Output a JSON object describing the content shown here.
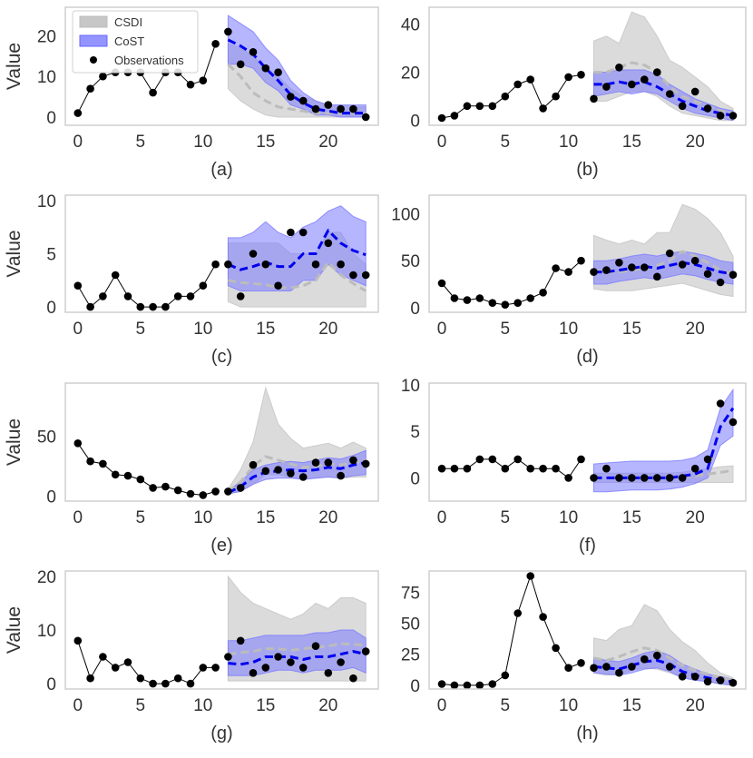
{
  "chart_data": {
    "type": "line",
    "legend": {
      "placement": "top-left of panel (a)",
      "entries": [
        {
          "name": "CSDI",
          "kind": "band",
          "color": "#bdbdbd"
        },
        {
          "name": "CoST",
          "kind": "band",
          "color": "#6666ff"
        },
        {
          "name": "Observations",
          "kind": "marker",
          "color": "#000000"
        }
      ]
    },
    "colors": {
      "csdi_band": "#c8c8c8",
      "csdi_median": "#bcbcbc",
      "cost_band": "#7a7aff",
      "cost_median": "#0000ee",
      "observations": "#000000",
      "frame": "#cfcfcf"
    },
    "xlim": [
      -1,
      24
    ],
    "xticks": [
      0,
      5,
      10,
      15,
      20
    ],
    "forecast_x": [
      12,
      13,
      14,
      15,
      16,
      17,
      18,
      19,
      20,
      21,
      22,
      23
    ],
    "panels": [
      {
        "label": "(a)",
        "ylabel": "Value",
        "ylim": [
          -2,
          27
        ],
        "yticks": [
          0,
          10,
          20
        ],
        "history": [
          1,
          7,
          10,
          11,
          11,
          11,
          6,
          11,
          11,
          8,
          9,
          18
        ],
        "observations": [
          21,
          13,
          16,
          12,
          11,
          5,
          4,
          2,
          3,
          2,
          2,
          0
        ],
        "cost_median": [
          19,
          17.5,
          15.5,
          12,
          9,
          5.5,
          3.5,
          2,
          1.5,
          1,
          1,
          1
        ],
        "cost_lower": [
          13,
          13,
          12,
          8.5,
          6.5,
          3,
          2,
          0.5,
          0.5,
          0,
          0,
          0
        ],
        "cost_upper": [
          25,
          23,
          21,
          17,
          14,
          9,
          6,
          4,
          3,
          3,
          3,
          3
        ],
        "csdi_median": [
          13,
          10,
          6,
          4,
          2.5,
          2,
          1.5,
          1,
          1,
          1,
          1,
          1
        ],
        "csdi_lower": [
          7,
          4,
          2,
          0.5,
          0,
          0,
          0,
          0,
          0,
          0,
          0,
          0
        ],
        "csdi_upper": [
          18,
          17,
          15,
          12,
          10,
          7,
          5,
          4,
          3,
          3,
          2.5,
          2.5
        ]
      },
      {
        "label": "(b)",
        "ylabel": "",
        "ylim": [
          -2,
          47
        ],
        "yticks": [
          0,
          20,
          40
        ],
        "history": [
          1,
          2,
          6,
          6,
          6,
          10,
          15,
          17,
          5,
          10,
          18,
          19
        ],
        "observations": [
          9,
          14,
          22,
          15,
          17,
          20,
          11,
          6,
          12,
          5,
          2,
          2
        ],
        "cost_median": [
          15,
          15,
          16,
          15,
          16,
          14,
          11,
          8,
          6,
          4,
          3,
          2
        ],
        "cost_lower": [
          10,
          11,
          12,
          11,
          12,
          11,
          8,
          5,
          3,
          2,
          1,
          0
        ],
        "cost_upper": [
          20,
          20,
          21,
          21,
          21,
          19,
          15,
          12,
          9,
          7,
          5,
          4
        ],
        "csdi_median": [
          20,
          20,
          22,
          24,
          23,
          20,
          14,
          10,
          8,
          6,
          4,
          3
        ],
        "csdi_lower": [
          8,
          8,
          10,
          12,
          12,
          10,
          6,
          3,
          2,
          1,
          0,
          0
        ],
        "csdi_upper": [
          33,
          35,
          32,
          45,
          43,
          35,
          25,
          22,
          18,
          14,
          8,
          5
        ]
      },
      {
        "label": "(c)",
        "ylabel": "Value",
        "ylim": [
          -0.5,
          10.5
        ],
        "yticks": [
          0,
          5,
          10
        ],
        "history": [
          2,
          0,
          1,
          3,
          1,
          0,
          0,
          0,
          1,
          1,
          2,
          4
        ],
        "observations": [
          4,
          1,
          5,
          4,
          2,
          7,
          7,
          4,
          6,
          4,
          3,
          3
        ],
        "cost_median": [
          4,
          3.5,
          3.8,
          4.2,
          3.8,
          3.8,
          5,
          5,
          7.2,
          6,
          5.3,
          4.9
        ],
        "cost_lower": [
          2,
          1.5,
          1.5,
          1.5,
          1.5,
          1.5,
          2.5,
          2.5,
          4,
          3,
          2.5,
          2
        ],
        "cost_upper": [
          6.5,
          6.5,
          7,
          8,
          7,
          6.5,
          7.5,
          8,
          9,
          9.5,
          8.5,
          8
        ],
        "csdi_median": [
          2.5,
          2.3,
          2.2,
          2.1,
          1.8,
          1.8,
          2.0,
          2.5,
          4.2,
          3.0,
          2.2,
          1.5
        ],
        "csdi_lower": [
          0.5,
          0,
          0,
          0,
          0,
          0,
          0,
          0,
          0,
          0,
          0,
          0
        ],
        "csdi_upper": [
          6,
          6,
          6,
          6,
          6,
          5,
          5,
          5,
          7,
          7,
          5,
          4
        ]
      },
      {
        "label": "(d)",
        "ylabel": "",
        "ylim": [
          -5,
          120
        ],
        "yticks": [
          0,
          50,
          100
        ],
        "history": [
          26,
          10,
          8,
          10,
          5,
          3,
          5,
          10,
          16,
          42,
          38,
          50
        ],
        "observations": [
          38,
          40,
          48,
          43,
          43,
          33,
          58,
          46,
          50,
          36,
          27,
          35
        ],
        "cost_median": [
          38,
          38,
          40,
          42,
          44,
          42,
          45,
          48,
          46,
          42,
          38,
          36
        ],
        "cost_lower": [
          25,
          25,
          28,
          30,
          32,
          30,
          33,
          36,
          34,
          30,
          27,
          25
        ],
        "cost_upper": [
          50,
          50,
          52,
          55,
          57,
          55,
          58,
          60,
          58,
          55,
          50,
          48
        ],
        "csdi_median": [
          40,
          38,
          38,
          40,
          42,
          45,
          50,
          60,
          55,
          48,
          40,
          36
        ],
        "csdi_lower": [
          20,
          18,
          18,
          18,
          20,
          22,
          24,
          26,
          22,
          18,
          14,
          12
        ],
        "csdi_upper": [
          77,
          72,
          68,
          72,
          68,
          80,
          80,
          110,
          105,
          95,
          80,
          55
        ]
      },
      {
        "label": "(e)",
        "ylabel": "Value",
        "ylim": [
          -4,
          94
        ],
        "yticks": [
          0,
          50
        ],
        "history": [
          44,
          29,
          27,
          18,
          17,
          14,
          7,
          8,
          5,
          2,
          1,
          4
        ],
        "observations": [
          4,
          7,
          26,
          21,
          22,
          19,
          16,
          28,
          28,
          17,
          30,
          27
        ],
        "cost_median": [
          3,
          8,
          16,
          20,
          21,
          22,
          21,
          22,
          24,
          23,
          26,
          28
        ],
        "cost_lower": [
          2,
          4,
          10,
          14,
          15,
          15,
          14,
          15,
          16,
          15,
          17,
          18
        ],
        "cost_upper": [
          5,
          12,
          22,
          26,
          28,
          29,
          28,
          30,
          32,
          31,
          34,
          38
        ],
        "csdi_median": [
          4,
          12,
          25,
          33,
          30,
          27,
          24,
          25,
          27,
          26,
          28,
          30
        ],
        "csdi_lower": [
          2,
          4,
          10,
          18,
          18,
          16,
          14,
          15,
          16,
          15,
          16,
          16
        ],
        "csdi_upper": [
          6,
          22,
          45,
          90,
          60,
          48,
          40,
          42,
          44,
          40,
          45,
          40
        ]
      },
      {
        "label": "(f)",
        "ylabel": "",
        "ylim": [
          -2.5,
          10.2
        ],
        "yticks": [
          0,
          5,
          10
        ],
        "history": [
          1,
          1,
          1,
          2,
          2,
          1,
          2,
          1,
          1,
          1,
          0,
          2
        ],
        "observations": [
          0,
          1,
          0,
          0,
          0,
          0,
          0,
          0,
          1,
          2,
          8,
          6
        ],
        "cost_median": [
          0,
          0,
          0,
          0,
          0,
          0,
          0,
          0.2,
          0.4,
          1.0,
          5.5,
          7.5
        ],
        "cost_lower": [
          -1.5,
          -1.5,
          -1.4,
          -1.3,
          -1.3,
          -1.3,
          -1.2,
          -1.0,
          -0.6,
          0,
          3.5,
          4.5
        ],
        "cost_upper": [
          1.5,
          1.6,
          1.7,
          1.8,
          1.8,
          1.8,
          1.8,
          1.9,
          2.2,
          3,
          7.5,
          9.5
        ],
        "csdi_median": [
          0,
          0,
          0,
          0,
          0,
          0,
          0,
          0.1,
          0.2,
          0.4,
          0.6,
          0.8
        ],
        "csdi_lower": [
          -0.5,
          -0.5,
          -0.5,
          -0.5,
          -0.5,
          -0.5,
          -0.5,
          -0.5,
          -0.5,
          -0.5,
          -0.5,
          -0.5
        ],
        "csdi_upper": [
          0.5,
          0.5,
          0.5,
          0.5,
          0.5,
          0.5,
          0.5,
          0.6,
          0.8,
          1.0,
          1.2,
          1.3
        ]
      },
      {
        "label": "(g)",
        "ylabel": "Value",
        "ylim": [
          -1,
          21
        ],
        "yticks": [
          0,
          10,
          20
        ],
        "history": [
          8,
          1,
          5,
          3,
          4,
          1,
          0,
          0,
          1,
          0,
          3,
          3
        ],
        "observations": [
          5,
          8,
          2,
          3,
          5,
          4,
          3,
          7,
          2,
          4,
          1,
          6
        ],
        "cost_median": [
          3.8,
          3.6,
          4,
          5,
          5,
          5,
          4.5,
          5,
          5,
          5.5,
          6,
          5.5
        ],
        "cost_lower": [
          1.5,
          1.5,
          1.5,
          2,
          2.5,
          2.5,
          2,
          2.5,
          2.5,
          2.5,
          3,
          2
        ],
        "cost_upper": [
          8,
          8,
          8.5,
          9,
          9,
          9,
          9,
          9.5,
          9.5,
          10,
          10,
          8.5
        ],
        "csdi_median": [
          5.5,
          5.8,
          6,
          6.5,
          6.5,
          6.2,
          6.5,
          6.8,
          7,
          7.5,
          7.3,
          7.2
        ],
        "csdi_lower": [
          0.5,
          0.5,
          0.5,
          0.5,
          0.5,
          0.5,
          0.5,
          0.5,
          0.5,
          0.5,
          0.5,
          0.5
        ],
        "csdi_upper": [
          20,
          17,
          15,
          14,
          13,
          12,
          13,
          15,
          14,
          16,
          16,
          15
        ]
      },
      {
        "label": "(h)",
        "ylabel": "",
        "ylim": [
          -3,
          92
        ],
        "yticks": [
          0,
          25,
          50,
          75
        ],
        "history": [
          1,
          0,
          0,
          0,
          1,
          8,
          58,
          88,
          55,
          30,
          14,
          18
        ],
        "observations": [
          14,
          15,
          10,
          15,
          21,
          24,
          15,
          7,
          7,
          3,
          4,
          2
        ],
        "cost_median": [
          15,
          14,
          13,
          16,
          19,
          20,
          17,
          11,
          8,
          6,
          4,
          3
        ],
        "cost_lower": [
          10,
          9,
          8,
          10,
          13,
          14,
          11,
          6,
          4,
          3,
          1,
          0
        ],
        "cost_upper": [
          22,
          20,
          19,
          22,
          26,
          28,
          24,
          17,
          13,
          9,
          7,
          5
        ],
        "csdi_median": [
          22,
          20,
          23,
          27,
          30,
          28,
          22,
          16,
          12,
          9,
          6,
          4
        ],
        "csdi_lower": [
          10,
          8,
          9,
          12,
          14,
          13,
          10,
          6,
          4,
          3,
          1,
          0
        ],
        "csdi_upper": [
          38,
          36,
          45,
          48,
          65,
          60,
          45,
          35,
          28,
          18,
          10,
          6
        ]
      }
    ]
  }
}
